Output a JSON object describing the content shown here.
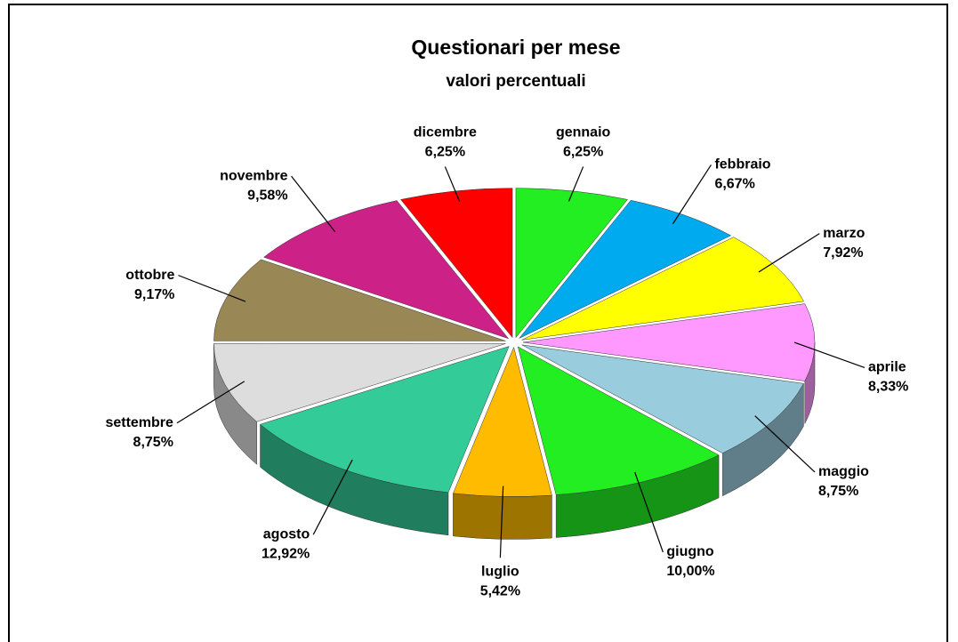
{
  "chart_data": {
    "type": "pie",
    "title": "Questionari per mese",
    "subtitle": "valori percentuali",
    "categories": [
      "gennaio",
      "febbraio",
      "marzo",
      "aprile",
      "maggio",
      "giugno",
      "luglio",
      "agosto",
      "settembre",
      "ottobre",
      "novembre",
      "dicembre"
    ],
    "values": [
      6.25,
      6.67,
      7.92,
      8.33,
      8.75,
      10.0,
      5.42,
      12.92,
      8.75,
      9.17,
      9.58,
      6.25
    ],
    "value_labels": [
      "6,25%",
      "6,67%",
      "7,92%",
      "8,33%",
      "8,75%",
      "10,00%",
      "5,42%",
      "12,92%",
      "8,75%",
      "9,17%",
      "9,58%",
      "6,25%"
    ],
    "colors": [
      "#22ee22",
      "#00aaee",
      "#ffff00",
      "#ff99ff",
      "#99ccdd",
      "#22ee22",
      "#ffbb00",
      "#33cc99",
      "#dddddd",
      "#998855",
      "#cc2288",
      "#ff0000"
    ]
  }
}
